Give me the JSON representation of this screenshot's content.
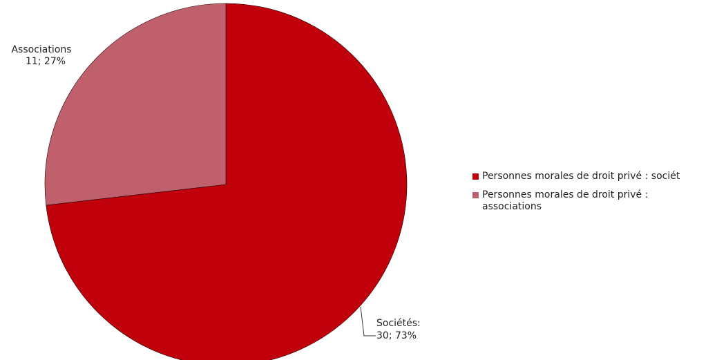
{
  "chart_data": {
    "type": "pie",
    "title": "",
    "slices": [
      {
        "name": "Personnes morales de droit privé : sociét",
        "label_name": "Sociétés:",
        "value": 30,
        "percent": "73%",
        "value_text": "30; 73%",
        "color": "#c0000b"
      },
      {
        "name": "Personnes morales de droit privé : associations",
        "label_name": "Associations",
        "value": 11,
        "percent": "27%",
        "value_text": "11; 27%",
        "color": "#c0606d"
      }
    ],
    "legend": {
      "position": "right",
      "entries": [
        {
          "line1": "Personnes morales de droit privé : sociét",
          "line2": "",
          "color": "#c0000b"
        },
        {
          "line1": "Personnes morales de droit privé :",
          "line2": "associations",
          "color": "#c0606d"
        }
      ]
    }
  }
}
